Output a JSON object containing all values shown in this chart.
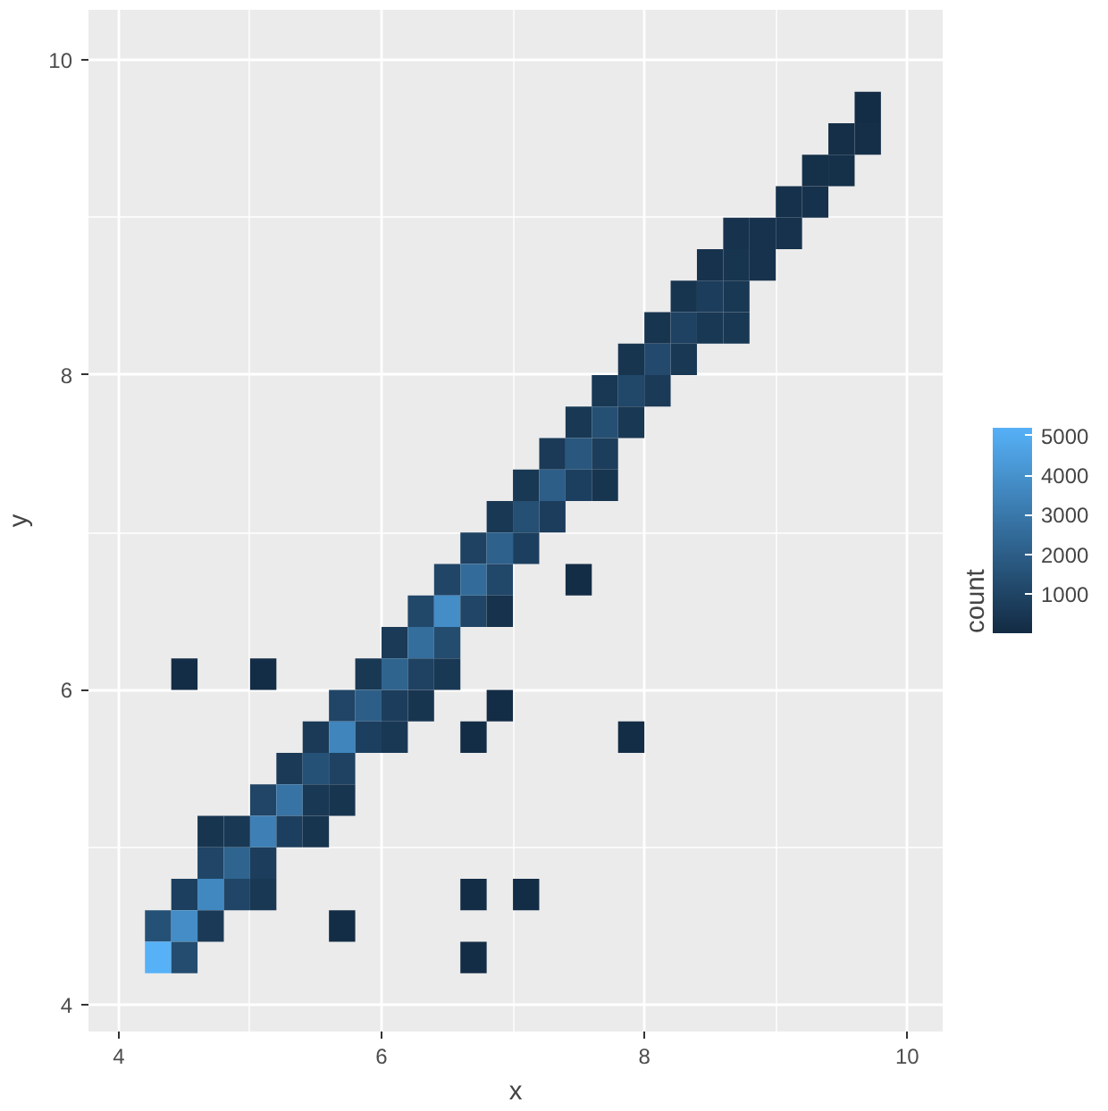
{
  "chart_data": {
    "type": "heatmap",
    "xlabel": "x",
    "ylabel": "y",
    "clabel": "count",
    "x": [
      4.3,
      4.5,
      4.7,
      4.9,
      5.1,
      5.3,
      5.5,
      5.7,
      5.9,
      6.1,
      6.3,
      6.5,
      6.7,
      6.9,
      7.1,
      7.3,
      7.5,
      7.7,
      7.9,
      8.1,
      8.3,
      8.5,
      8.7,
      8.9,
      9.1,
      9.3,
      9.5,
      9.7
    ],
    "y": [
      9.7,
      9.5,
      9.3,
      9.1,
      8.9,
      8.7,
      8.5,
      8.3,
      8.1,
      7.9,
      7.7,
      7.5,
      7.3,
      7.1,
      6.9,
      6.7,
      6.5,
      6.3,
      6.1,
      5.9,
      5.7,
      5.5,
      5.3,
      5.1,
      4.9,
      4.7,
      4.5,
      4.3
    ],
    "cells": [
      [
        null,
        null,
        null,
        null,
        null,
        null,
        null,
        null,
        null,
        null,
        null,
        null,
        null,
        null,
        null,
        null,
        null,
        null,
        null,
        null,
        null,
        null,
        null,
        null,
        null,
        null,
        null,
        100
      ],
      [
        null,
        null,
        null,
        null,
        null,
        null,
        null,
        null,
        null,
        null,
        null,
        null,
        null,
        null,
        null,
        null,
        null,
        null,
        null,
        null,
        null,
        null,
        null,
        null,
        null,
        null,
        150,
        150
      ],
      [
        null,
        null,
        null,
        null,
        null,
        null,
        null,
        null,
        null,
        null,
        null,
        null,
        null,
        null,
        null,
        null,
        null,
        null,
        null,
        null,
        null,
        null,
        null,
        null,
        null,
        200,
        200,
        null
      ],
      [
        null,
        null,
        null,
        null,
        null,
        null,
        null,
        null,
        null,
        null,
        null,
        null,
        null,
        null,
        null,
        null,
        null,
        null,
        null,
        null,
        null,
        null,
        null,
        null,
        250,
        250,
        null,
        null
      ],
      [
        null,
        null,
        null,
        null,
        null,
        null,
        null,
        null,
        null,
        null,
        null,
        null,
        null,
        null,
        null,
        null,
        null,
        null,
        null,
        null,
        null,
        null,
        300,
        300,
        300,
        null,
        null,
        null
      ],
      [
        null,
        null,
        null,
        null,
        null,
        null,
        null,
        null,
        null,
        null,
        null,
        null,
        null,
        null,
        null,
        null,
        null,
        null,
        null,
        null,
        null,
        300,
        400,
        300,
        null,
        null,
        null,
        null
      ],
      [
        null,
        null,
        null,
        null,
        null,
        null,
        null,
        null,
        null,
        null,
        null,
        null,
        null,
        null,
        null,
        null,
        null,
        null,
        null,
        null,
        400,
        700,
        500,
        null,
        null,
        null,
        null,
        null
      ],
      [
        null,
        null,
        null,
        null,
        null,
        null,
        null,
        null,
        null,
        null,
        null,
        null,
        null,
        null,
        null,
        null,
        null,
        null,
        null,
        400,
        900,
        500,
        500,
        null,
        null,
        null,
        null,
        null
      ],
      [
        null,
        null,
        null,
        null,
        null,
        null,
        null,
        null,
        null,
        null,
        null,
        null,
        null,
        null,
        null,
        null,
        null,
        null,
        400,
        1200,
        500,
        null,
        null,
        null,
        null,
        null,
        null,
        null
      ],
      [
        null,
        null,
        null,
        null,
        null,
        null,
        null,
        null,
        null,
        null,
        null,
        null,
        null,
        null,
        null,
        null,
        null,
        500,
        1100,
        600,
        null,
        null,
        null,
        null,
        null,
        null,
        null,
        null
      ],
      [
        null,
        null,
        null,
        null,
        null,
        null,
        null,
        null,
        null,
        null,
        null,
        null,
        null,
        null,
        null,
        null,
        500,
        1400,
        500,
        null,
        null,
        null,
        null,
        null,
        null,
        null,
        null,
        null
      ],
      [
        null,
        null,
        null,
        null,
        null,
        null,
        null,
        null,
        null,
        null,
        null,
        null,
        null,
        null,
        null,
        600,
        1700,
        700,
        null,
        null,
        null,
        null,
        null,
        null,
        null,
        null,
        null,
        null
      ],
      [
        null,
        null,
        null,
        null,
        null,
        null,
        null,
        null,
        null,
        null,
        null,
        null,
        null,
        null,
        500,
        2000,
        800,
        400,
        null,
        null,
        null,
        null,
        null,
        null,
        null,
        null,
        null,
        null
      ],
      [
        null,
        null,
        null,
        null,
        null,
        null,
        null,
        null,
        null,
        null,
        null,
        null,
        null,
        500,
        1400,
        700,
        null,
        null,
        null,
        null,
        null,
        null,
        null,
        null,
        null,
        null,
        null,
        null
      ],
      [
        null,
        null,
        null,
        null,
        null,
        null,
        null,
        null,
        null,
        null,
        null,
        null,
        900,
        2100,
        800,
        null,
        null,
        null,
        null,
        null,
        null,
        null,
        null,
        null,
        null,
        null,
        null,
        null
      ],
      [
        null,
        null,
        null,
        null,
        null,
        null,
        null,
        null,
        null,
        null,
        null,
        1000,
        2500,
        1100,
        null,
        null,
        100,
        null,
        null,
        null,
        null,
        null,
        null,
        null,
        null,
        null,
        null,
        null
      ],
      [
        null,
        null,
        null,
        null,
        null,
        null,
        null,
        null,
        null,
        null,
        1100,
        3800,
        1000,
        300,
        null,
        null,
        null,
        null,
        null,
        null,
        null,
        null,
        null,
        null,
        null,
        null,
        null,
        null
      ],
      [
        null,
        null,
        null,
        null,
        null,
        null,
        null,
        null,
        null,
        600,
        2600,
        1300,
        null,
        null,
        null,
        null,
        null,
        null,
        null,
        null,
        null,
        null,
        null,
        null,
        null,
        null,
        null,
        null
      ],
      [
        null,
        100,
        null,
        null,
        100,
        null,
        null,
        null,
        500,
        2200,
        900,
        500,
        null,
        null,
        null,
        null,
        null,
        null,
        null,
        null,
        null,
        null,
        null,
        null,
        null,
        null,
        null,
        null
      ],
      [
        null,
        null,
        null,
        null,
        null,
        null,
        null,
        1000,
        2000,
        700,
        400,
        null,
        null,
        100,
        null,
        null,
        null,
        null,
        null,
        null,
        null,
        null,
        null,
        null,
        null,
        null,
        null,
        null
      ],
      [
        null,
        null,
        null,
        null,
        null,
        null,
        600,
        3500,
        800,
        500,
        null,
        null,
        100,
        null,
        null,
        null,
        null,
        null,
        100,
        null,
        null,
        null,
        null,
        null,
        null,
        null,
        null,
        null
      ],
      [
        null,
        null,
        null,
        null,
        null,
        600,
        1500,
        900,
        null,
        null,
        null,
        null,
        null,
        null,
        null,
        null,
        null,
        null,
        null,
        null,
        null,
        null,
        null,
        null,
        null,
        null,
        null,
        null
      ],
      [
        null,
        null,
        null,
        null,
        1000,
        2800,
        500,
        400,
        null,
        null,
        null,
        null,
        null,
        null,
        null,
        null,
        null,
        null,
        null,
        null,
        null,
        null,
        null,
        null,
        null,
        null,
        null,
        null
      ],
      [
        null,
        null,
        400,
        500,
        3300,
        800,
        400,
        null,
        null,
        null,
        null,
        null,
        null,
        null,
        null,
        null,
        null,
        null,
        null,
        null,
        null,
        null,
        null,
        null,
        null,
        null,
        null,
        null
      ],
      [
        null,
        null,
        1000,
        2200,
        700,
        null,
        null,
        null,
        null,
        null,
        null,
        null,
        null,
        null,
        null,
        null,
        null,
        null,
        null,
        null,
        null,
        null,
        null,
        null,
        null,
        null,
        null,
        null
      ],
      [
        null,
        800,
        3600,
        1000,
        500,
        null,
        null,
        null,
        null,
        null,
        null,
        null,
        100,
        null,
        100,
        null,
        null,
        null,
        null,
        null,
        null,
        null,
        null,
        null,
        null,
        null,
        null,
        null
      ],
      [
        1500,
        3800,
        600,
        null,
        null,
        null,
        null,
        100,
        null,
        null,
        null,
        null,
        null,
        null,
        null,
        null,
        null,
        null,
        null,
        null,
        null,
        null,
        null,
        null,
        null,
        null,
        null,
        null
      ],
      [
        5200,
        1300,
        null,
        null,
        null,
        null,
        null,
        null,
        null,
        null,
        null,
        null,
        100,
        null,
        null,
        null,
        null,
        null,
        null,
        null,
        null,
        null,
        null,
        null,
        null,
        null,
        null,
        null
      ]
    ],
    "xlim": [
      3.77,
      10.27
    ],
    "ylim": [
      3.83,
      10.32
    ],
    "xticks": [
      4,
      6,
      8,
      10
    ],
    "yticks": [
      4,
      6,
      8,
      10
    ],
    "clim": [
      1,
      5200
    ],
    "cticks": [
      1000,
      2000,
      3000,
      4000,
      5000
    ],
    "grid": true
  }
}
